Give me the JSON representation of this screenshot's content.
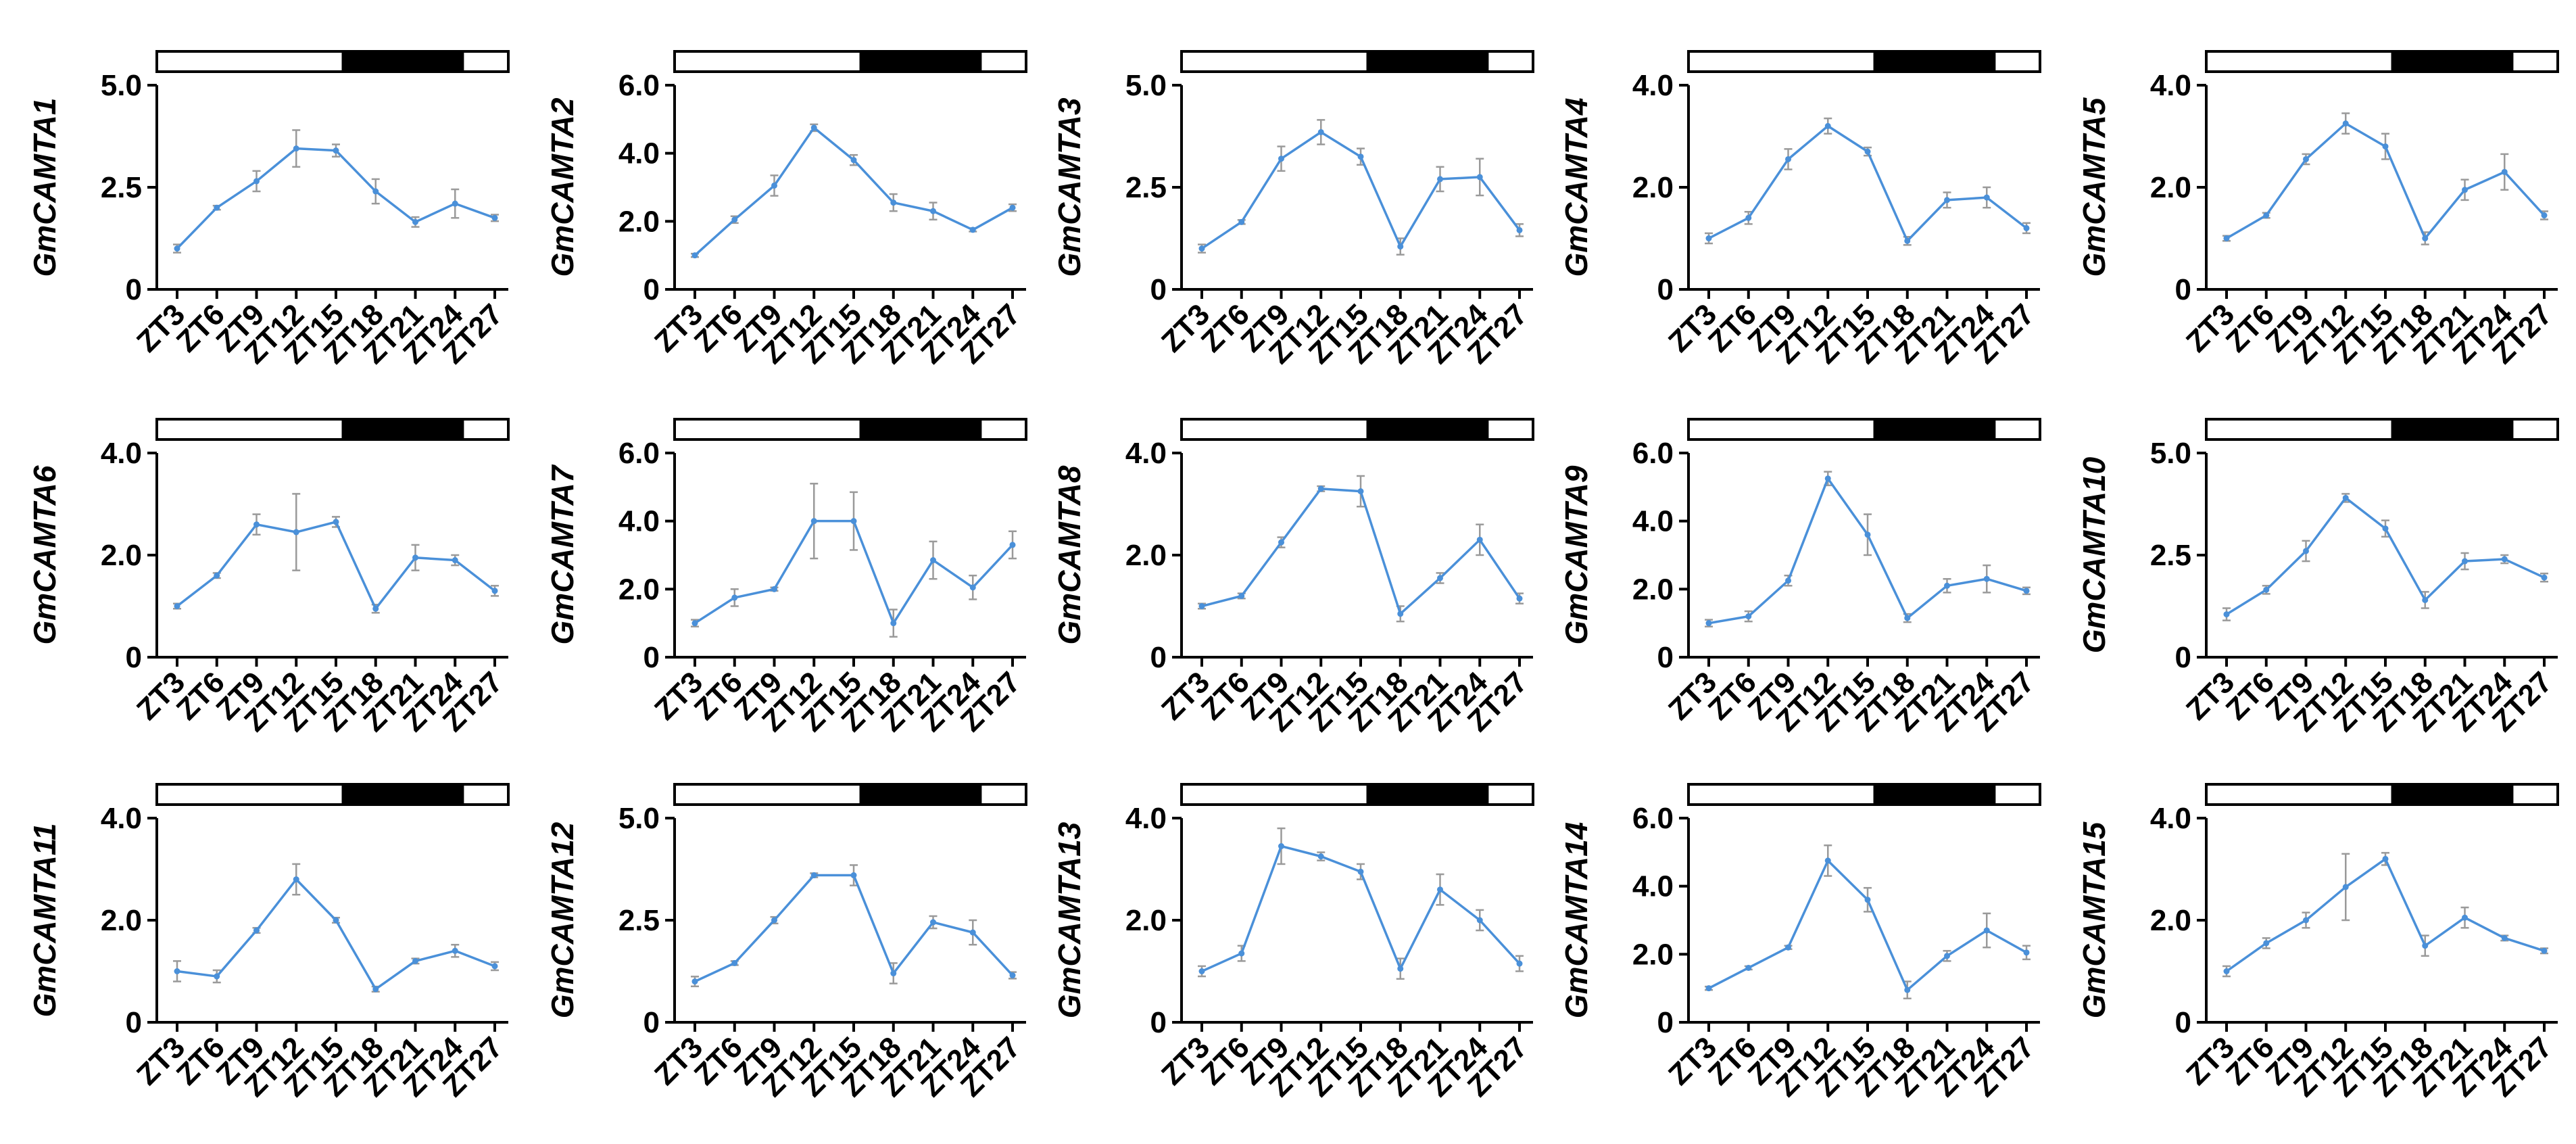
{
  "figure": {
    "line_color": "#4A90D9",
    "error_color": "#9A9A9A",
    "light_color": "#FFFFFF",
    "dark_color": "#000000"
  },
  "chart_data": [
    {
      "type": "line",
      "ylabel": "GmCAMTA1",
      "ylim": [
        0,
        5
      ],
      "yticks": [
        "0",
        "2.5",
        "5.0"
      ],
      "ytick_values": [
        0,
        2.5,
        5
      ],
      "categories": [
        "ZT3",
        "ZT6",
        "ZT9",
        "ZT12",
        "ZT15",
        "ZT18",
        "ZT21",
        "ZT24",
        "ZT27"
      ],
      "values": [
        1.0,
        2.0,
        2.65,
        3.45,
        3.4,
        2.4,
        1.65,
        2.1,
        1.75
      ],
      "errors": [
        0.1,
        0.05,
        0.25,
        0.45,
        0.15,
        0.3,
        0.12,
        0.35,
        0.08
      ],
      "photoperiod": [
        {
          "state": "light",
          "from": 0,
          "to": 0.53
        },
        {
          "state": "dark",
          "from": 0.53,
          "to": 0.87
        },
        {
          "state": "light",
          "from": 0.87,
          "to": 1
        }
      ]
    },
    {
      "type": "line",
      "ylabel": "GmCAMTA2",
      "ylim": [
        0,
        6
      ],
      "yticks": [
        "0",
        "2.0",
        "4.0",
        "6.0"
      ],
      "ytick_values": [
        0,
        2,
        4,
        6
      ],
      "categories": [
        "ZT3",
        "ZT6",
        "ZT9",
        "ZT12",
        "ZT15",
        "ZT18",
        "ZT21",
        "ZT24",
        "ZT27"
      ],
      "values": [
        1.0,
        2.05,
        3.05,
        4.75,
        3.8,
        2.55,
        2.3,
        1.75,
        2.4
      ],
      "errors": [
        0.05,
        0.1,
        0.3,
        0.1,
        0.15,
        0.25,
        0.25,
        0.05,
        0.1
      ],
      "photoperiod": [
        {
          "state": "light",
          "from": 0,
          "to": 0.53
        },
        {
          "state": "dark",
          "from": 0.53,
          "to": 0.87
        },
        {
          "state": "light",
          "from": 0.87,
          "to": 1
        }
      ]
    },
    {
      "type": "line",
      "ylabel": "GmCAMTA3",
      "ylim": [
        0,
        5
      ],
      "yticks": [
        "0",
        "2.5",
        "5.0"
      ],
      "ytick_values": [
        0,
        2.5,
        5
      ],
      "categories": [
        "ZT3",
        "ZT6",
        "ZT9",
        "ZT12",
        "ZT15",
        "ZT18",
        "ZT21",
        "ZT24",
        "ZT27"
      ],
      "values": [
        1.0,
        1.65,
        3.2,
        3.85,
        3.25,
        1.05,
        2.7,
        2.75,
        1.45
      ],
      "errors": [
        0.1,
        0.05,
        0.3,
        0.3,
        0.2,
        0.2,
        0.3,
        0.45,
        0.15
      ],
      "photoperiod": [
        {
          "state": "light",
          "from": 0,
          "to": 0.53
        },
        {
          "state": "dark",
          "from": 0.53,
          "to": 0.87
        },
        {
          "state": "light",
          "from": 0.87,
          "to": 1
        }
      ]
    },
    {
      "type": "line",
      "ylabel": "GmCAMTA4",
      "ylim": [
        0,
        4
      ],
      "yticks": [
        "0",
        "2.0",
        "4.0"
      ],
      "ytick_values": [
        0,
        2,
        4
      ],
      "categories": [
        "ZT3",
        "ZT6",
        "ZT9",
        "ZT12",
        "ZT15",
        "ZT18",
        "ZT21",
        "ZT24",
        "ZT27"
      ],
      "values": [
        1.0,
        1.4,
        2.55,
        3.2,
        2.7,
        0.95,
        1.75,
        1.8,
        1.2
      ],
      "errors": [
        0.1,
        0.12,
        0.2,
        0.15,
        0.08,
        0.08,
        0.15,
        0.2,
        0.1
      ],
      "photoperiod": [
        {
          "state": "light",
          "from": 0,
          "to": 0.53
        },
        {
          "state": "dark",
          "from": 0.53,
          "to": 0.87
        },
        {
          "state": "light",
          "from": 0.87,
          "to": 1
        }
      ]
    },
    {
      "type": "line",
      "ylabel": "GmCAMTA5",
      "ylim": [
        0,
        4
      ],
      "yticks": [
        "0",
        "2.0",
        "4.0"
      ],
      "ytick_values": [
        0,
        2,
        4
      ],
      "categories": [
        "ZT3",
        "ZT6",
        "ZT9",
        "ZT12",
        "ZT15",
        "ZT18",
        "ZT21",
        "ZT24",
        "ZT27"
      ],
      "values": [
        1.0,
        1.45,
        2.55,
        3.25,
        2.8,
        1.0,
        1.95,
        2.3,
        1.45
      ],
      "errors": [
        0.05,
        0.05,
        0.1,
        0.2,
        0.25,
        0.12,
        0.2,
        0.35,
        0.08
      ],
      "photoperiod": [
        {
          "state": "light",
          "from": 0,
          "to": 0.53
        },
        {
          "state": "dark",
          "from": 0.53,
          "to": 0.87
        },
        {
          "state": "light",
          "from": 0.87,
          "to": 1
        }
      ]
    },
    {
      "type": "line",
      "ylabel": "GmCAMTA6",
      "ylim": [
        0,
        4
      ],
      "yticks": [
        "0",
        "2.0",
        "4.0"
      ],
      "ytick_values": [
        0,
        2,
        4
      ],
      "categories": [
        "ZT3",
        "ZT6",
        "ZT9",
        "ZT12",
        "ZT15",
        "ZT18",
        "ZT21",
        "ZT24",
        "ZT27"
      ],
      "values": [
        1.0,
        1.6,
        2.6,
        2.45,
        2.65,
        0.95,
        1.95,
        1.9,
        1.3
      ],
      "errors": [
        0.05,
        0.05,
        0.2,
        0.75,
        0.1,
        0.08,
        0.25,
        0.1,
        0.1
      ],
      "photoperiod": [
        {
          "state": "light",
          "from": 0,
          "to": 0.53
        },
        {
          "state": "dark",
          "from": 0.53,
          "to": 0.87
        },
        {
          "state": "light",
          "from": 0.87,
          "to": 1
        }
      ]
    },
    {
      "type": "line",
      "ylabel": "GmCAMTA7",
      "ylim": [
        0,
        6
      ],
      "yticks": [
        "0",
        "2.0",
        "4.0",
        "6.0"
      ],
      "ytick_values": [
        0,
        2,
        4,
        6
      ],
      "categories": [
        "ZT3",
        "ZT6",
        "ZT9",
        "ZT12",
        "ZT15",
        "ZT18",
        "ZT21",
        "ZT24",
        "ZT27"
      ],
      "values": [
        1.0,
        1.75,
        2.0,
        4.0,
        4.0,
        1.0,
        2.85,
        2.05,
        3.3
      ],
      "errors": [
        0.1,
        0.25,
        0.05,
        1.1,
        0.85,
        0.4,
        0.55,
        0.35,
        0.4
      ],
      "photoperiod": [
        {
          "state": "light",
          "from": 0,
          "to": 0.53
        },
        {
          "state": "dark",
          "from": 0.53,
          "to": 0.87
        },
        {
          "state": "light",
          "from": 0.87,
          "to": 1
        }
      ]
    },
    {
      "type": "line",
      "ylabel": "GmCAMTA8",
      "ylim": [
        0,
        4
      ],
      "yticks": [
        "0",
        "2.0",
        "4.0"
      ],
      "ytick_values": [
        0,
        2,
        4
      ],
      "categories": [
        "ZT3",
        "ZT6",
        "ZT9",
        "ZT12",
        "ZT15",
        "ZT18",
        "ZT21",
        "ZT24",
        "ZT27"
      ],
      "values": [
        1.0,
        1.2,
        2.25,
        3.3,
        3.25,
        0.85,
        1.55,
        2.3,
        1.15
      ],
      "errors": [
        0.05,
        0.05,
        0.1,
        0.05,
        0.3,
        0.15,
        0.1,
        0.3,
        0.1
      ],
      "photoperiod": [
        {
          "state": "light",
          "from": 0,
          "to": 0.53
        },
        {
          "state": "dark",
          "from": 0.53,
          "to": 0.87
        },
        {
          "state": "light",
          "from": 0.87,
          "to": 1
        }
      ]
    },
    {
      "type": "line",
      "ylabel": "GmCAMTA9",
      "ylim": [
        0,
        6
      ],
      "yticks": [
        "0",
        "2.0",
        "4.0",
        "6.0"
      ],
      "ytick_values": [
        0,
        2,
        4,
        6
      ],
      "categories": [
        "ZT3",
        "ZT6",
        "ZT9",
        "ZT12",
        "ZT15",
        "ZT18",
        "ZT21",
        "ZT24",
        "ZT27"
      ],
      "values": [
        1.0,
        1.2,
        2.25,
        5.25,
        3.6,
        1.15,
        2.1,
        2.3,
        1.95
      ],
      "errors": [
        0.1,
        0.15,
        0.15,
        0.2,
        0.6,
        0.12,
        0.2,
        0.4,
        0.1
      ],
      "photoperiod": [
        {
          "state": "light",
          "from": 0,
          "to": 0.53
        },
        {
          "state": "dark",
          "from": 0.53,
          "to": 0.87
        },
        {
          "state": "light",
          "from": 0.87,
          "to": 1
        }
      ]
    },
    {
      "type": "line",
      "ylabel": "GmCAMTA10",
      "ylim": [
        0,
        5
      ],
      "yticks": [
        "0",
        "2.5",
        "5.0"
      ],
      "ytick_values": [
        0,
        2.5,
        5
      ],
      "categories": [
        "ZT3",
        "ZT6",
        "ZT9",
        "ZT12",
        "ZT15",
        "ZT18",
        "ZT21",
        "ZT24",
        "ZT27"
      ],
      "values": [
        1.05,
        1.65,
        2.6,
        3.9,
        3.15,
        1.4,
        2.35,
        2.4,
        1.95
      ],
      "errors": [
        0.15,
        0.1,
        0.25,
        0.1,
        0.2,
        0.2,
        0.2,
        0.1,
        0.1
      ],
      "photoperiod": [
        {
          "state": "light",
          "from": 0,
          "to": 0.53
        },
        {
          "state": "dark",
          "from": 0.53,
          "to": 0.87
        },
        {
          "state": "light",
          "from": 0.87,
          "to": 1
        }
      ]
    },
    {
      "type": "line",
      "ylabel": "GmCAMTA11",
      "ylim": [
        0,
        4
      ],
      "yticks": [
        "0",
        "2.0",
        "4.0"
      ],
      "ytick_values": [
        0,
        2,
        4
      ],
      "categories": [
        "ZT3",
        "ZT6",
        "ZT9",
        "ZT12",
        "ZT15",
        "ZT18",
        "ZT21",
        "ZT24",
        "ZT27"
      ],
      "values": [
        1.0,
        0.9,
        1.8,
        2.8,
        2.0,
        0.65,
        1.2,
        1.4,
        1.1
      ],
      "errors": [
        0.2,
        0.12,
        0.05,
        0.3,
        0.05,
        0.05,
        0.05,
        0.12,
        0.08
      ],
      "photoperiod": [
        {
          "state": "light",
          "from": 0,
          "to": 0.53
        },
        {
          "state": "dark",
          "from": 0.53,
          "to": 0.87
        },
        {
          "state": "light",
          "from": 0.87,
          "to": 1
        }
      ]
    },
    {
      "type": "line",
      "ylabel": "GmCAMTA12",
      "ylim": [
        0,
        5
      ],
      "yticks": [
        "0",
        "2.5",
        "5.0"
      ],
      "ytick_values": [
        0,
        2.5,
        5
      ],
      "categories": [
        "ZT3",
        "ZT6",
        "ZT9",
        "ZT12",
        "ZT15",
        "ZT18",
        "ZT21",
        "ZT24",
        "ZT27"
      ],
      "values": [
        1.0,
        1.45,
        2.5,
        3.6,
        3.6,
        1.2,
        2.45,
        2.2,
        1.15
      ],
      "errors": [
        0.12,
        0.05,
        0.08,
        0.05,
        0.25,
        0.25,
        0.15,
        0.3,
        0.08
      ],
      "photoperiod": [
        {
          "state": "light",
          "from": 0,
          "to": 0.53
        },
        {
          "state": "dark",
          "from": 0.53,
          "to": 0.87
        },
        {
          "state": "light",
          "from": 0.87,
          "to": 1
        }
      ]
    },
    {
      "type": "line",
      "ylabel": "GmCAMTA13",
      "ylim": [
        0,
        4
      ],
      "yticks": [
        "0",
        "2.0",
        "4.0"
      ],
      "ytick_values": [
        0,
        2,
        4
      ],
      "categories": [
        "ZT3",
        "ZT6",
        "ZT9",
        "ZT12",
        "ZT15",
        "ZT18",
        "ZT21",
        "ZT24",
        "ZT27"
      ],
      "values": [
        1.0,
        1.35,
        3.45,
        3.25,
        2.95,
        1.05,
        2.6,
        2.0,
        1.15
      ],
      "errors": [
        0.1,
        0.15,
        0.35,
        0.08,
        0.15,
        0.2,
        0.3,
        0.2,
        0.15
      ],
      "photoperiod": [
        {
          "state": "light",
          "from": 0,
          "to": 0.53
        },
        {
          "state": "dark",
          "from": 0.53,
          "to": 0.87
        },
        {
          "state": "light",
          "from": 0.87,
          "to": 1
        }
      ]
    },
    {
      "type": "line",
      "ylabel": "GmCAMTA14",
      "ylim": [
        0,
        6
      ],
      "yticks": [
        "0",
        "2.0",
        "4.0",
        "6.0"
      ],
      "ytick_values": [
        0,
        2,
        4,
        6
      ],
      "categories": [
        "ZT3",
        "ZT6",
        "ZT9",
        "ZT12",
        "ZT15",
        "ZT18",
        "ZT21",
        "ZT24",
        "ZT27"
      ],
      "values": [
        1.0,
        1.6,
        2.2,
        4.75,
        3.6,
        0.95,
        1.95,
        2.7,
        2.05
      ],
      "errors": [
        0.05,
        0.05,
        0.05,
        0.45,
        0.35,
        0.25,
        0.15,
        0.5,
        0.2
      ],
      "photoperiod": [
        {
          "state": "light",
          "from": 0,
          "to": 0.53
        },
        {
          "state": "dark",
          "from": 0.53,
          "to": 0.87
        },
        {
          "state": "light",
          "from": 0.87,
          "to": 1
        }
      ]
    },
    {
      "type": "line",
      "ylabel": "GmCAMTA15",
      "ylim": [
        0,
        4
      ],
      "yticks": [
        "0",
        "2.0",
        "4.0"
      ],
      "ytick_values": [
        0,
        2,
        4
      ],
      "categories": [
        "ZT3",
        "ZT6",
        "ZT9",
        "ZT12",
        "ZT15",
        "ZT18",
        "ZT21",
        "ZT24",
        "ZT27"
      ],
      "values": [
        1.0,
        1.55,
        2.0,
        2.65,
        3.2,
        1.5,
        2.05,
        1.65,
        1.4
      ],
      "errors": [
        0.1,
        0.1,
        0.15,
        0.65,
        0.12,
        0.2,
        0.2,
        0.05,
        0.05
      ],
      "photoperiod": [
        {
          "state": "light",
          "from": 0,
          "to": 0.53
        },
        {
          "state": "dark",
          "from": 0.53,
          "to": 0.87
        },
        {
          "state": "light",
          "from": 0.87,
          "to": 1
        }
      ]
    }
  ]
}
